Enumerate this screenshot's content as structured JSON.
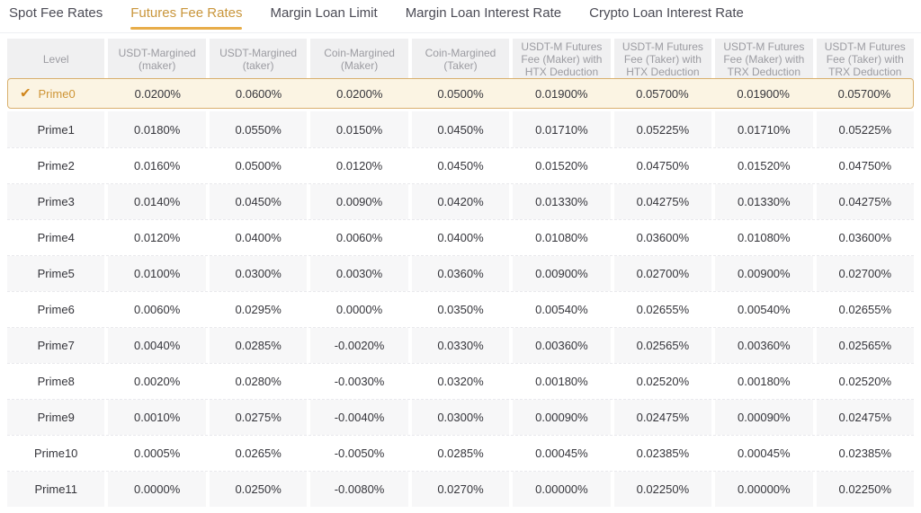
{
  "tabs": [
    {
      "label": "Spot Fee Rates",
      "active": false
    },
    {
      "label": "Futures Fee Rates",
      "active": true
    },
    {
      "label": "Margin Loan Limit",
      "active": false
    },
    {
      "label": "Margin Loan Interest Rate",
      "active": false
    },
    {
      "label": "Crypto Loan Interest Rate",
      "active": false
    }
  ],
  "icons": {
    "check": "✔"
  },
  "colors": {
    "accent_text": "#c9963c",
    "accent_underline": "#e8ad49",
    "selected_row_bg": "#fbf4e3",
    "selected_row_border": "#d9b06e",
    "header_bg": "#f0f0f1",
    "striped_bg": "#f7f7f8"
  },
  "table": {
    "columns": [
      "Level",
      "USDT-Margined (maker)",
      "USDT-Margined (taker)",
      "Coin-Margined (Maker)",
      "Coin-Margined (Taker)",
      "USDT-M Futures Fee (Maker) with HTX Deduction",
      "USDT-M Futures Fee (Taker) with HTX Deduction",
      "USDT-M Futures Fee (Maker) with TRX Deduction",
      "USDT-M Futures Fee (Taker) with TRX Deduction"
    ],
    "rows": [
      {
        "level": "Prime0",
        "selected": true,
        "values": [
          "0.0200%",
          "0.0600%",
          "0.0200%",
          "0.0500%",
          "0.01900%",
          "0.05700%",
          "0.01900%",
          "0.05700%"
        ]
      },
      {
        "level": "Prime1",
        "selected": false,
        "values": [
          "0.0180%",
          "0.0550%",
          "0.0150%",
          "0.0450%",
          "0.01710%",
          "0.05225%",
          "0.01710%",
          "0.05225%"
        ]
      },
      {
        "level": "Prime2",
        "selected": false,
        "values": [
          "0.0160%",
          "0.0500%",
          "0.0120%",
          "0.0450%",
          "0.01520%",
          "0.04750%",
          "0.01520%",
          "0.04750%"
        ]
      },
      {
        "level": "Prime3",
        "selected": false,
        "values": [
          "0.0140%",
          "0.0450%",
          "0.0090%",
          "0.0420%",
          "0.01330%",
          "0.04275%",
          "0.01330%",
          "0.04275%"
        ]
      },
      {
        "level": "Prime4",
        "selected": false,
        "values": [
          "0.0120%",
          "0.0400%",
          "0.0060%",
          "0.0400%",
          "0.01080%",
          "0.03600%",
          "0.01080%",
          "0.03600%"
        ]
      },
      {
        "level": "Prime5",
        "selected": false,
        "values": [
          "0.0100%",
          "0.0300%",
          "0.0030%",
          "0.0360%",
          "0.00900%",
          "0.02700%",
          "0.00900%",
          "0.02700%"
        ]
      },
      {
        "level": "Prime6",
        "selected": false,
        "values": [
          "0.0060%",
          "0.0295%",
          "0.0000%",
          "0.0350%",
          "0.00540%",
          "0.02655%",
          "0.00540%",
          "0.02655%"
        ]
      },
      {
        "level": "Prime7",
        "selected": false,
        "values": [
          "0.0040%",
          "0.0285%",
          "-0.0020%",
          "0.0330%",
          "0.00360%",
          "0.02565%",
          "0.00360%",
          "0.02565%"
        ]
      },
      {
        "level": "Prime8",
        "selected": false,
        "values": [
          "0.0020%",
          "0.0280%",
          "-0.0030%",
          "0.0320%",
          "0.00180%",
          "0.02520%",
          "0.00180%",
          "0.02520%"
        ]
      },
      {
        "level": "Prime9",
        "selected": false,
        "values": [
          "0.0010%",
          "0.0275%",
          "-0.0040%",
          "0.0300%",
          "0.00090%",
          "0.02475%",
          "0.00090%",
          "0.02475%"
        ]
      },
      {
        "level": "Prime10",
        "selected": false,
        "values": [
          "0.0005%",
          "0.0265%",
          "-0.0050%",
          "0.0285%",
          "0.00045%",
          "0.02385%",
          "0.00045%",
          "0.02385%"
        ]
      },
      {
        "level": "Prime11",
        "selected": false,
        "values": [
          "0.0000%",
          "0.0250%",
          "-0.0080%",
          "0.0270%",
          "0.00000%",
          "0.02250%",
          "0.00000%",
          "0.02250%"
        ]
      }
    ]
  }
}
